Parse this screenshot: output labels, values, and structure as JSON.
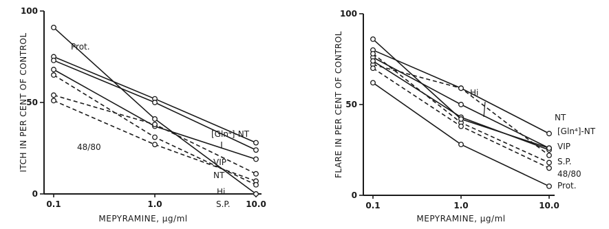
{
  "chart_data": [
    {
      "type": "line",
      "xlabel": "MEPYRAMINE, µg/ml",
      "ylabel": "ITCH IN PER CENT OF CONTROL",
      "x_scale": "log",
      "x": [
        0.1,
        1.0,
        10.0
      ],
      "x_tick_labels": [
        "0.1",
        "1.0",
        "10.0"
      ],
      "y_ticks": [
        "0",
        "50",
        "100"
      ],
      "ylim": [
        0,
        100
      ],
      "series": [
        {
          "name": "Prot.",
          "values": [
            91,
            41,
            0
          ],
          "style": "solid"
        },
        {
          "name": "[Gln⁴]-NT",
          "values": [
            75,
            52,
            28
          ],
          "style": "solid"
        },
        {
          "name": "VIP",
          "values": [
            73,
            50,
            24
          ],
          "style": "solid"
        },
        {
          "name": "NT",
          "values": [
            68,
            37,
            19
          ],
          "style": "solid"
        },
        {
          "name": "Hi",
          "values": [
            54,
            38,
            11
          ],
          "style": "dashed"
        },
        {
          "name": "S.P.",
          "values": [
            51,
            27,
            7
          ],
          "style": "dashed"
        },
        {
          "name": "48/80",
          "values": [
            65,
            31,
            5
          ],
          "style": "dashed"
        }
      ],
      "grid": false
    },
    {
      "type": "line",
      "xlabel": "MEPYRAMINE, µg/ml",
      "ylabel": "FLARE IN PER CENT OF CONTROL",
      "x_scale": "log",
      "x": [
        0.1,
        1.0,
        10.0
      ],
      "x_tick_labels": [
        "0.1",
        "1.0",
        "10.0"
      ],
      "y_ticks": [
        "0",
        "50",
        "100"
      ],
      "ylim": [
        0,
        100
      ],
      "series": [
        {
          "name": "NT",
          "values": [
            80,
            59,
            34
          ],
          "style": "solid"
        },
        {
          "name": "Hi",
          "values": [
            72,
            59,
            22
          ],
          "style": "dashed"
        },
        {
          "name": "[Gln⁴]-NT",
          "values": [
            76,
            50,
            26
          ],
          "style": "solid"
        },
        {
          "name": "VIP",
          "values": [
            74,
            43,
            25
          ],
          "style": "solid"
        },
        {
          "name": "S.P.",
          "values": [
            78,
            40,
            18
          ],
          "style": "dashed"
        },
        {
          "name": "48/80",
          "values": [
            70,
            38,
            15
          ],
          "style": "dashed"
        },
        {
          "name": "Prot.",
          "values": [
            62,
            28,
            5
          ],
          "style": "solid"
        },
        {
          "name": "",
          "values": [
            86,
            42,
            26
          ],
          "style": "solid"
        }
      ],
      "grid": false
    }
  ]
}
